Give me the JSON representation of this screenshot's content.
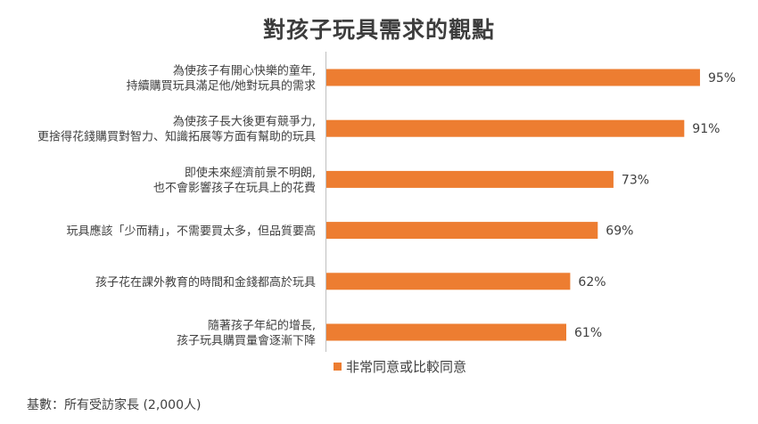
{
  "chart_data": {
    "type": "bar",
    "orientation": "horizontal",
    "title": "對孩子玩具需求的觀點",
    "categories": [
      [
        "為使孩子有開心快樂的童年,",
        "持續購買玩具滿足他/她對玩具的需求"
      ],
      [
        "為使孩子長大後更有競爭力,",
        "更捨得花錢購買對智力、知識拓展等方面有幫助的玩具"
      ],
      [
        "即使未來經濟前景不明朗,",
        "也不會影響孩子在玩具上的花費"
      ],
      [
        "玩具應該「少而精」，不需要買太多，但品質要高"
      ],
      [
        "孩子花在課外教育的時間和金錢都高於玩具"
      ],
      [
        "隨著孩子年紀的增長,",
        "孩子玩具購買量會逐漸下降"
      ]
    ],
    "series": [
      {
        "name": "非常同意或比較同意",
        "values": [
          95,
          91,
          73,
          69,
          62,
          61
        ]
      }
    ],
    "value_labels": [
      "95%",
      "91%",
      "73%",
      "69%",
      "62%",
      "61%"
    ],
    "xlim": [
      0,
      100
    ],
    "grid": false,
    "legend_position": "bottom",
    "bar_color": "#ED7D31"
  },
  "footnote": "基數：所有受訪家長 (2,000人)"
}
